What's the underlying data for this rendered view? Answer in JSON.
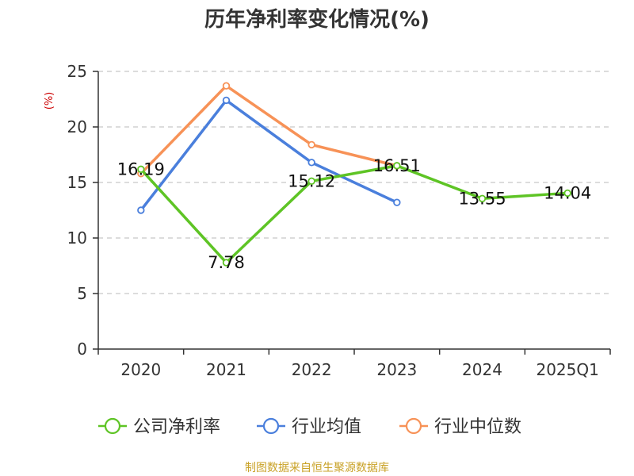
{
  "chart_data": {
    "type": "line",
    "title": "历年净利率变化情况(%)",
    "ylabel": "(%)",
    "xlabel": "",
    "categories": [
      "2020",
      "2021",
      "2022",
      "2023",
      "2024",
      "2025Q1"
    ],
    "ylim": [
      0,
      25
    ],
    "yticks": [
      0,
      5,
      10,
      15,
      20,
      25
    ],
    "grid": true,
    "legend_position": "bottom",
    "series": [
      {
        "name": "公司净利率",
        "color": "#5ec425",
        "values": [
          16.19,
          7.78,
          15.12,
          16.51,
          13.55,
          14.04
        ],
        "labels": [
          "16.19",
          "7.78",
          "15.12",
          "16.51",
          "13.55",
          "14.04"
        ]
      },
      {
        "name": "行业均值",
        "color": "#4a7fdc",
        "values": [
          12.5,
          22.4,
          16.8,
          13.2,
          null,
          null
        ]
      },
      {
        "name": "行业中位数",
        "color": "#f79257",
        "values": [
          15.8,
          23.7,
          18.4,
          16.5,
          null,
          null
        ]
      }
    ],
    "source": "制图数据来自恒生聚源数据库",
    "colors": {
      "unit": "#cc0000",
      "source": "#c9a227",
      "grid": "#c8c8c8",
      "axis": "#333333"
    }
  }
}
